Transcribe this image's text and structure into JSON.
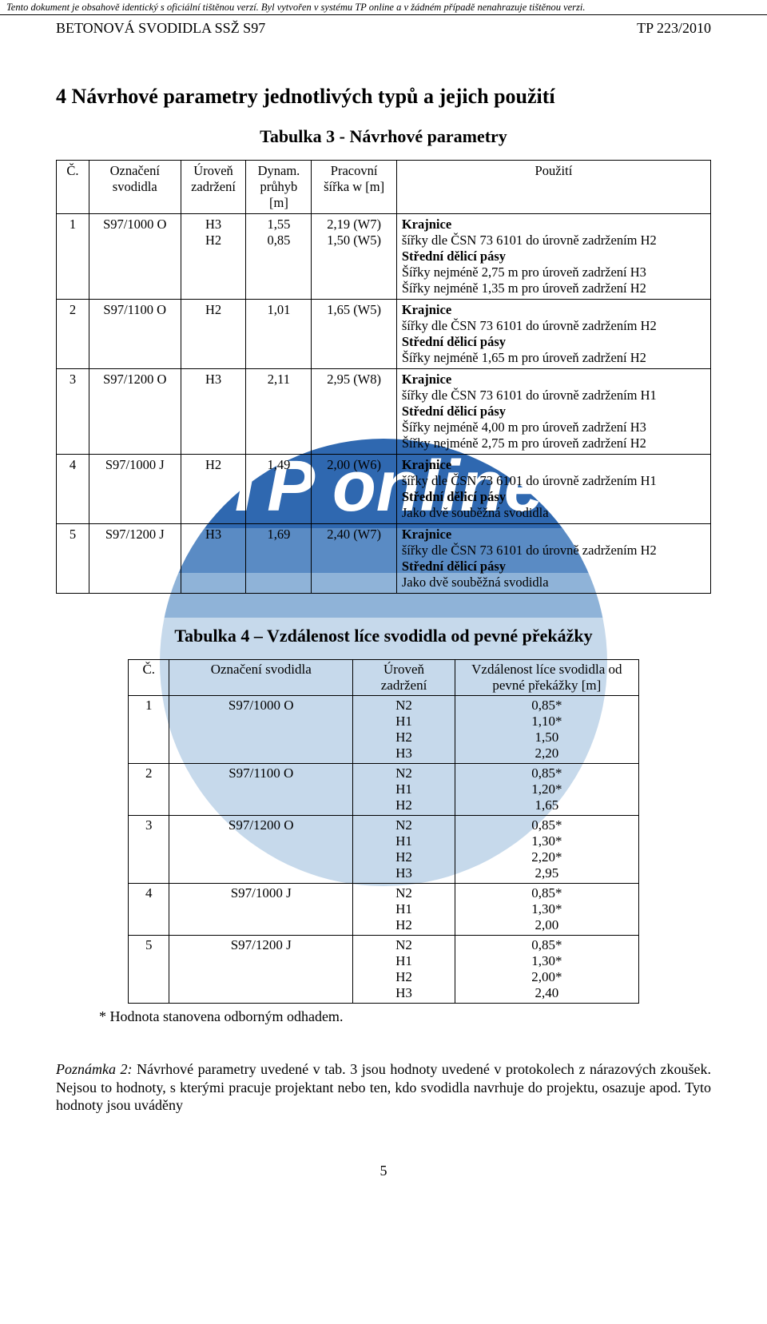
{
  "topbar": "Tento dokument je obsahově identický s oficiální tištěnou verzí. Byl vytvořen v systému TP online a v žádném případě nenahrazuje tištěnou verzi.",
  "header": {
    "left": "BETONOVÁ SVODIDLA SSŽ S97",
    "right": "TP 223/2010"
  },
  "section_title": "4  Návrhové parametry jednotlivých typů a jejich použití",
  "table3": {
    "title": "Tabulka 3 - Návrhové parametry",
    "headers": {
      "c": "Č.",
      "ozn": "Označení svodidla",
      "uroven": "Úroveň zadržení",
      "pruhyb": "Dynam. průhyb [m]",
      "sirka": "Pracovní šířka w [m]",
      "pouziti": "Použití"
    },
    "col_widths": [
      "5%",
      "14%",
      "10%",
      "10%",
      "13%",
      "48%"
    ],
    "rows": [
      {
        "c": "1",
        "ozn": "S97/1000 O",
        "uroven": "H3\nH2",
        "pruhyb": "1,55\n0,85",
        "sirka": "2,19 (W7)\n1,50 (W5)",
        "usage": [
          {
            "bold": true,
            "text": "Krajnice"
          },
          {
            "bold": false,
            "text": "šířky dle ČSN 73 6101 do úrovně zadržením H2"
          },
          {
            "bold": true,
            "text": "Střední dělicí pásy"
          },
          {
            "bold": false,
            "text": "Šířky nejméně 2,75 m pro úroveň zadržení H3"
          },
          {
            "bold": false,
            "text": "Šířky nejméně 1,35 m pro úroveň zadržení H2"
          }
        ]
      },
      {
        "c": "2",
        "ozn": "S97/1100 O",
        "uroven": "H2",
        "pruhyb": "1,01",
        "sirka": "1,65 (W5)",
        "usage": [
          {
            "bold": true,
            "text": "Krajnice"
          },
          {
            "bold": false,
            "text": "šířky dle ČSN 73 6101 do úrovně zadržením H2"
          },
          {
            "bold": true,
            "text": "Střední dělicí pásy"
          },
          {
            "bold": false,
            "text": "Šířky nejméně 1,65 m pro úroveň zadržení H2"
          }
        ]
      },
      {
        "c": "3",
        "ozn": "S97/1200 O",
        "uroven": "H3",
        "pruhyb": "2,11",
        "sirka": "2,95 (W8)",
        "usage": [
          {
            "bold": true,
            "text": "Krajnice"
          },
          {
            "bold": false,
            "text": "šířky dle ČSN 73 6101 do úrovně zadržením H1"
          },
          {
            "bold": true,
            "text": "Střední dělicí pásy"
          },
          {
            "bold": false,
            "text": "Šířky nejméně 4,00 m pro úroveň zadržení H3"
          },
          {
            "bold": false,
            "text": "Šířky nejméně 2,75 m pro úroveň zadržení H2"
          }
        ]
      },
      {
        "c": "4",
        "ozn": "S97/1000 J",
        "uroven": "H2",
        "pruhyb": "1,49",
        "sirka": "2,00 (W6)",
        "usage": [
          {
            "bold": true,
            "text": "Krajnice"
          },
          {
            "bold": false,
            "text": "šířky dle ČSN 73 6101 do úrovně zadržením H1"
          },
          {
            "bold": true,
            "text": "Střední dělicí pásy"
          },
          {
            "bold": false,
            "text": "Jako dvě souběžná svodidla"
          }
        ]
      },
      {
        "c": "5",
        "ozn": "S97/1200 J",
        "uroven": "H3",
        "pruhyb": "1,69",
        "sirka": "2,40 (W7)",
        "usage": [
          {
            "bold": true,
            "text": "Krajnice"
          },
          {
            "bold": false,
            "text": "šířky dle ČSN 73 6101 do úrovně zadržením H2"
          },
          {
            "bold": true,
            "text": "Střední dělicí pásy"
          },
          {
            "bold": false,
            "text": "Jako dvě souběžná svodidla"
          }
        ]
      }
    ]
  },
  "table4": {
    "title": "Tabulka 4 – Vzdálenost líce svodidla od pevné překážky",
    "headers": {
      "c": "Č.",
      "ozn": "Označení svodidla",
      "uroven": "Úroveň zadržení",
      "vzd": "Vzdálenost líce svodidla od pevné překážky [m]"
    },
    "col_widths": [
      "8%",
      "36%",
      "20%",
      "36%"
    ],
    "rows": [
      {
        "c": "1",
        "ozn": "S97/1000 O",
        "levels": [
          "N2",
          "H1",
          "H2",
          "H3"
        ],
        "vals": [
          "0,85*",
          "1,10*",
          "1,50",
          "2,20"
        ]
      },
      {
        "c": "2",
        "ozn": "S97/1100 O",
        "levels": [
          "N2",
          "H1",
          "H2"
        ],
        "vals": [
          "0,85*",
          "1,20*",
          "1,65"
        ]
      },
      {
        "c": "3",
        "ozn": "S97/1200 O",
        "levels": [
          "N2",
          "H1",
          "H2",
          "H3"
        ],
        "vals": [
          "0,85*",
          "1,30*",
          "2,20*",
          "2,95"
        ]
      },
      {
        "c": "4",
        "ozn": "S97/1000 J",
        "levels": [
          "N2",
          "H1",
          "H2"
        ],
        "vals": [
          "0,85*",
          "1,30*",
          "2,00"
        ]
      },
      {
        "c": "5",
        "ozn": "S97/1200 J",
        "levels": [
          "N2",
          "H1",
          "H2",
          "H3"
        ],
        "vals": [
          "0,85*",
          "1,30*",
          "2,00*",
          "2,40"
        ]
      }
    ],
    "footnote": "* Hodnota stanovena odborným odhadem."
  },
  "paragraph": {
    "lead": "Poznámka 2:",
    "text": " Návrhové parametry uvedené v tab. 3 jsou hodnoty uvedené v protokolech z nárazových zkoušek. Nejsou to hodnoty, s kterými pracuje projektant nebo ten, kdo svodidla navrhuje do projektu, osazuje apod. Tyto hodnoty jsou uváděny"
  },
  "page_number": "5",
  "watermark": {
    "band_colors": [
      "#2f68b0",
      "#5a8bc4",
      "#8fb3d8",
      "#c6d9eb"
    ],
    "text": "TP online"
  }
}
